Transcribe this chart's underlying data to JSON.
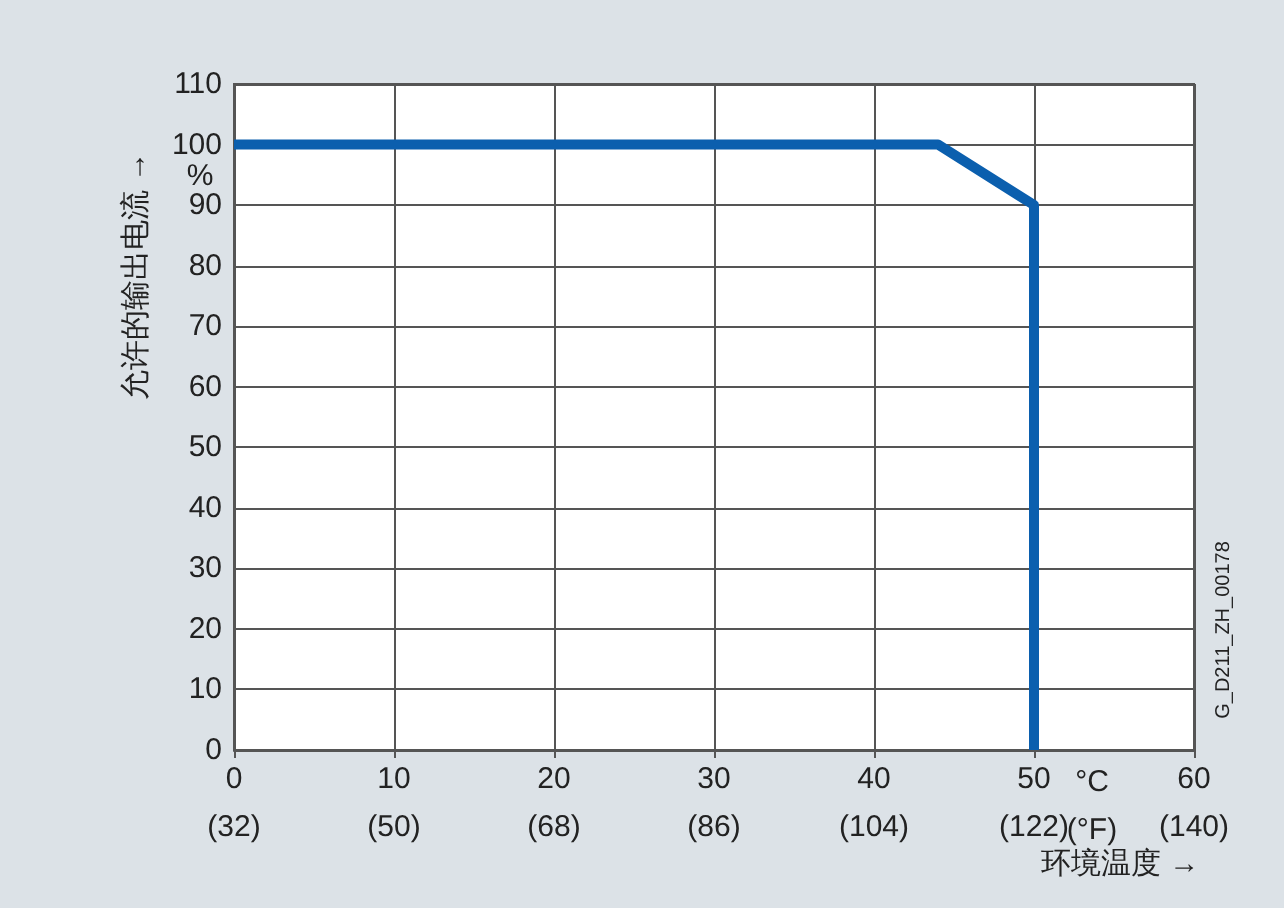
{
  "chart_data": {
    "type": "line",
    "ylabel": "允许的输出电流 →",
    "xlabel": "环境温度 →",
    "x": [
      0,
      44,
      50,
      50
    ],
    "series": [
      {
        "color": "#0b5fae",
        "values": [
          100,
          100,
          90,
          0
        ]
      }
    ],
    "xlim": [
      0,
      60
    ],
    "ylim": [
      0,
      110
    ],
    "xticks": [
      0,
      10,
      20,
      30,
      40,
      50,
      60
    ],
    "x2lim": [
      32,
      140
    ],
    "x2ticks": [
      {
        "value": 32,
        "label": "(32)"
      },
      {
        "value": 50,
        "label": "(50)"
      },
      {
        "value": 68,
        "label": "(68)"
      },
      {
        "value": 86,
        "label": "(86)"
      },
      {
        "value": 104,
        "label": "(104)"
      },
      {
        "value": 122,
        "label": "(122)"
      },
      {
        "value": 140,
        "label": "(140)"
      }
    ],
    "yticks": [
      0,
      10,
      20,
      30,
      40,
      50,
      60,
      70,
      80,
      90,
      100,
      110
    ],
    "grid": true,
    "marker": "none",
    "line_style": "solid",
    "annotations": [
      "%",
      "°C",
      "(°F)",
      "G_D211_ZH_00178"
    ]
  }
}
